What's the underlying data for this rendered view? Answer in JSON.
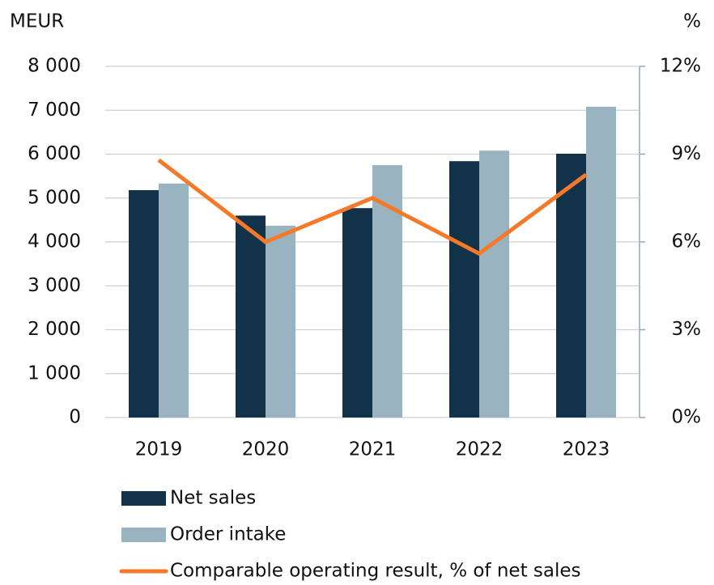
{
  "chart_data": {
    "type": "bar",
    "y_unit": "MEUR",
    "y2_unit": "%",
    "categories": [
      "2019",
      "2020",
      "2021",
      "2022",
      "2023"
    ],
    "series": [
      {
        "name": "Net sales",
        "color": "#12324a",
        "values": [
          5180,
          4600,
          4770,
          5840,
          6010
        ]
      },
      {
        "name": "Order intake",
        "color": "#9ab3c0",
        "values": [
          5330,
          4370,
          5750,
          6080,
          7080
        ]
      },
      {
        "name": "Comparable operating result, % of net sales",
        "color": "#f47a2a",
        "type": "line",
        "axis": "y2",
        "values": [
          8.8,
          6.0,
          7.5,
          5.6,
          8.3
        ]
      }
    ],
    "ylim": [
      0,
      8000
    ],
    "yticks": [
      0,
      {
        "value": 1000,
        "label": "1 000"
      },
      {
        "value": 2000,
        "label": "2 000"
      },
      {
        "value": 3000,
        "label": "3 000"
      },
      {
        "value": 4000,
        "label": "4 000"
      },
      {
        "value": 5000,
        "label": "5 000"
      },
      {
        "value": 6000,
        "label": "6 000"
      },
      {
        "value": 7000,
        "label": "7 000"
      },
      {
        "value": 8000,
        "label": "8 000"
      }
    ],
    "y2lim": [
      0,
      12
    ],
    "y2ticks": [
      {
        "value": 0,
        "label": "0%"
      },
      {
        "value": 3,
        "label": "3%"
      },
      {
        "value": 6,
        "label": "6%"
      },
      {
        "value": 9,
        "label": "9%"
      },
      {
        "value": 12,
        "label": "12%"
      }
    ],
    "grid": true
  }
}
